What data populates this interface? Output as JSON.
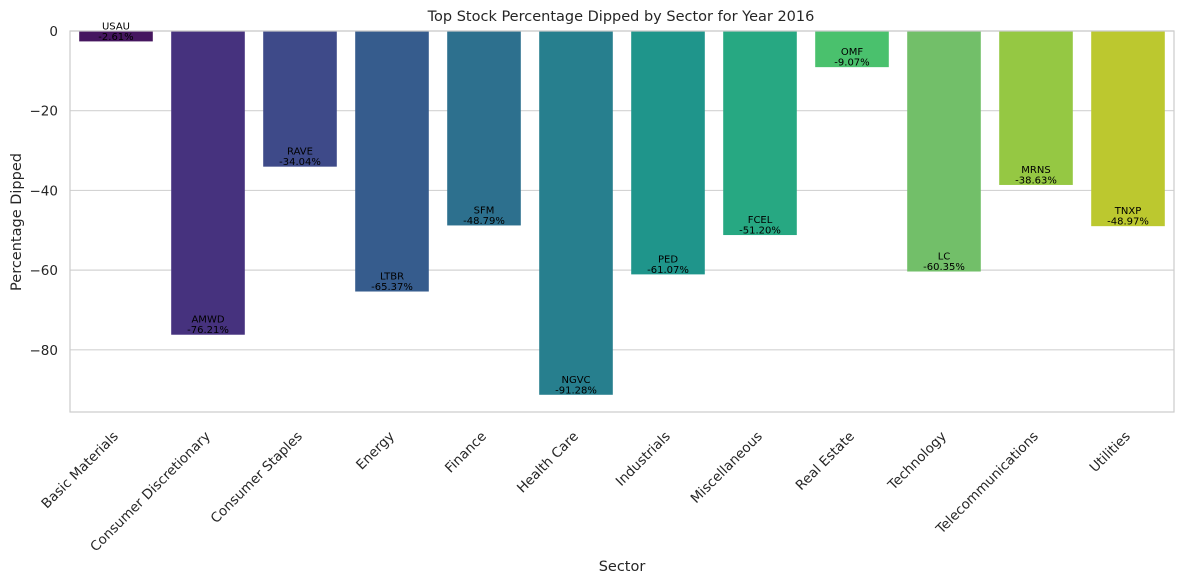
{
  "chart_data": {
    "type": "bar",
    "title": "Top Stock Percentage Dipped by Sector for Year 2016",
    "xlabel": "Sector",
    "ylabel": "Percentage Dipped",
    "ylim": [
      -95.6,
      0
    ],
    "yticks": [
      0,
      -20,
      -40,
      -60,
      -80
    ],
    "grid": "horizontal",
    "categories": [
      "Basic Materials",
      "Consumer Discretionary",
      "Consumer Staples",
      "Energy",
      "Finance",
      "Health Care",
      "Industrials",
      "Miscellaneous",
      "Real Estate",
      "Technology",
      "Telecommunications",
      "Utilities"
    ],
    "values": [
      -2.61,
      -76.21,
      -34.04,
      -65.37,
      -48.79,
      -91.28,
      -61.07,
      -51.2,
      -9.07,
      -60.35,
      -38.63,
      -48.97
    ],
    "tickers": [
      "USAU",
      "AMWD",
      "RAVE",
      "LTBR",
      "SFM",
      "NGVC",
      "PED",
      "FCEL",
      "OMF",
      "LC",
      "MRNS",
      "TNXP"
    ],
    "value_labels": [
      "-2.61%",
      "-76.21%",
      "-34.04%",
      "-65.37%",
      "-48.79%",
      "-91.28%",
      "-61.07%",
      "-51.20%",
      "-9.07%",
      "-60.35%",
      "-38.63%",
      "-48.97%"
    ],
    "colors": [
      "#45165f",
      "#46327e",
      "#3e4a89",
      "#365c8d",
      "#2d708e",
      "#277f8e",
      "#1f958b",
      "#27a882",
      "#4ac16d",
      "#72bf69",
      "#95c843",
      "#bcc82f"
    ]
  }
}
